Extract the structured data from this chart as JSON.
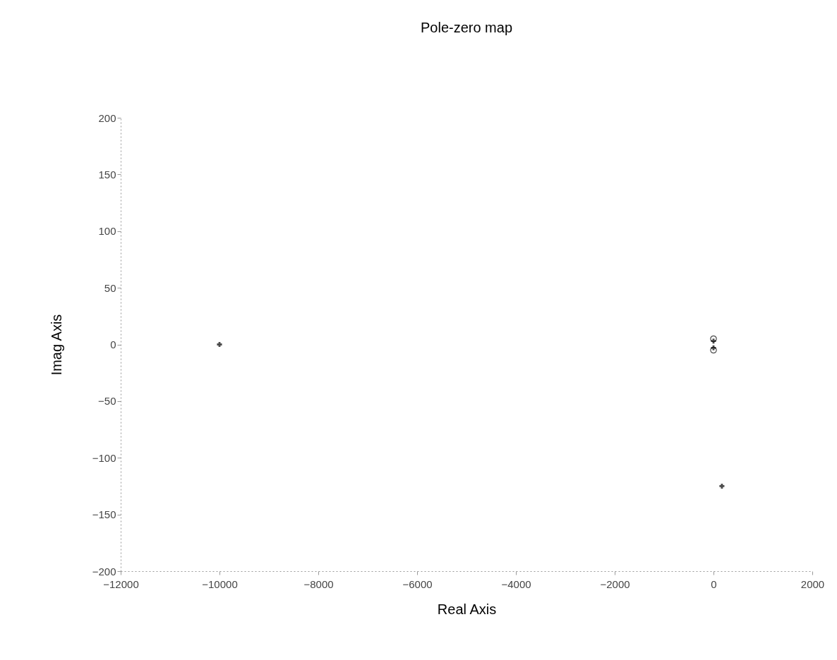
{
  "chart_data": {
    "type": "scatter",
    "title": "Pole-zero map",
    "xlabel": "Real Axis",
    "ylabel": "Imag Axis",
    "xlim": [
      -12000,
      2000
    ],
    "xticks": [
      -12000,
      -10000,
      -8000,
      -6000,
      -4000,
      -2000,
      0,
      2000
    ],
    "ylim": [
      -200,
      200
    ],
    "yticks": [
      -200,
      -150,
      -100,
      -50,
      0,
      50,
      100,
      150,
      200
    ],
    "grid": false,
    "series": [
      {
        "color": "#000000",
        "marker": "cross",
        "x": [
          -10000,
          0,
          0,
          170
        ],
        "values": [
          0,
          3,
          -3,
          -125
        ]
      },
      {
        "color": "#000000",
        "marker": "circle",
        "x": [
          0,
          0
        ],
        "values": [
          5,
          -5
        ]
      }
    ]
  }
}
